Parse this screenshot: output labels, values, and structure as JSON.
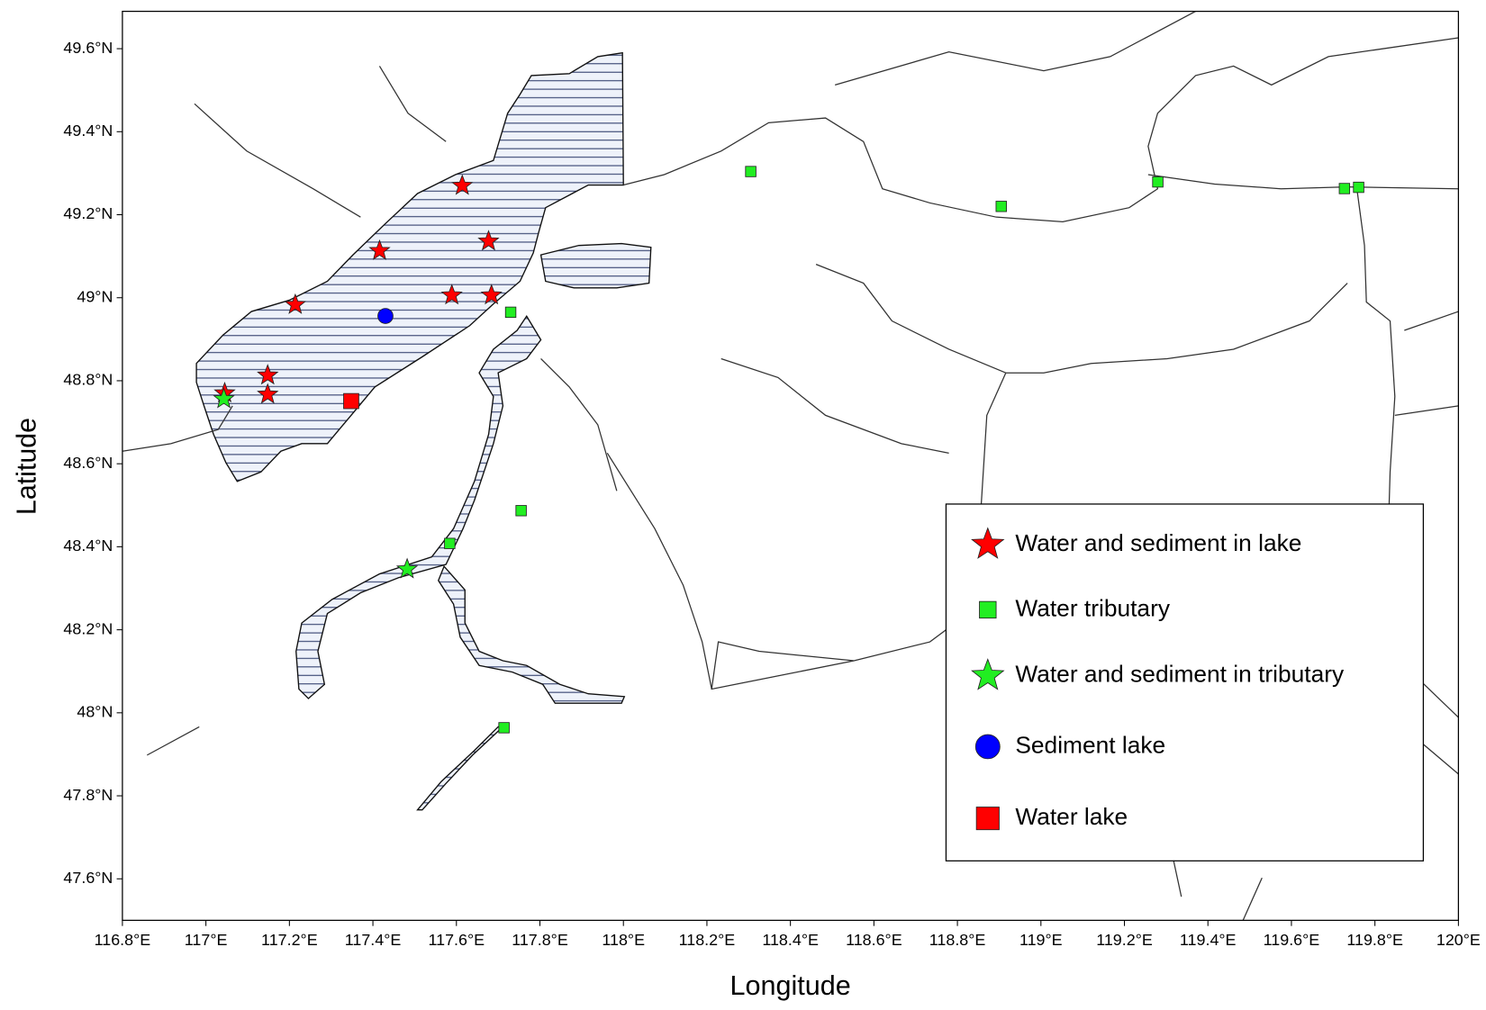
{
  "chart_data": {
    "type": "scatter",
    "x_label": "Longitude",
    "y_label": "Latitude",
    "xlim": [
      116.8,
      120
    ],
    "ylim": [
      47.5,
      49.69
    ],
    "xticks": [
      {
        "value": 116.8,
        "label": "116.8°E"
      },
      {
        "value": 117,
        "label": "117°E"
      },
      {
        "value": 117.2,
        "label": "117.2°E"
      },
      {
        "value": 117.4,
        "label": "117.4°E"
      },
      {
        "value": 117.6,
        "label": "117.6°E"
      },
      {
        "value": 117.8,
        "label": "117.8°E"
      },
      {
        "value": 118,
        "label": "118°E"
      },
      {
        "value": 118.2,
        "label": "118.2°E"
      },
      {
        "value": 118.4,
        "label": "118.4°E"
      },
      {
        "value": 118.6,
        "label": "118.6°E"
      },
      {
        "value": 118.8,
        "label": "118.8°E"
      },
      {
        "value": 119,
        "label": "119°E"
      },
      {
        "value": 119.2,
        "label": "119.2°E"
      },
      {
        "value": 119.4,
        "label": "119.4°E"
      },
      {
        "value": 119.6,
        "label": "119.6°E"
      },
      {
        "value": 119.8,
        "label": "119.8°E"
      },
      {
        "value": 120,
        "label": "120°E"
      }
    ],
    "yticks": [
      {
        "value": 47.6,
        "label": "47.6°N"
      },
      {
        "value": 47.8,
        "label": "47.8°N"
      },
      {
        "value": 48,
        "label": "48°N"
      },
      {
        "value": 48.2,
        "label": "48.2°N"
      },
      {
        "value": 48.4,
        "label": "48.4°N"
      },
      {
        "value": 48.6,
        "label": "48.6°N"
      },
      {
        "value": 48.8,
        "label": "48.8°N"
      },
      {
        "value": 49,
        "label": "49°N"
      },
      {
        "value": 49.2,
        "label": "49.2°N"
      },
      {
        "value": 49.4,
        "label": "49.4°N"
      },
      {
        "value": 49.6,
        "label": "49.6°N"
      }
    ],
    "series": [
      {
        "name": "Water and sediment in lake",
        "color": "#ff0000",
        "marker": "star",
        "x": [
          117.614,
          117.416,
          117.677,
          117.214,
          117.589,
          117.684,
          117.148,
          117.148,
          117.045
        ],
        "y": [
          49.27,
          49.113,
          49.136,
          48.983,
          49.006,
          49.006,
          48.813,
          48.767,
          48.77
        ]
      },
      {
        "name": "Water tributary",
        "color": "#22ee22",
        "marker": "square",
        "x": [
          118.305,
          119.28,
          118.905,
          119.727,
          119.761,
          117.73,
          117.755,
          117.584,
          117.714
        ],
        "y": [
          49.304,
          49.279,
          49.22,
          49.263,
          49.266,
          48.965,
          48.487,
          48.408,
          47.964
        ]
      },
      {
        "name": "Water and sediment in tributary",
        "color": "#22ee22",
        "marker": "star",
        "x": [
          117.043,
          117.482
        ],
        "y": [
          48.756,
          48.346
        ]
      },
      {
        "name": "Sediment lake",
        "color": "#0000ff",
        "marker": "circle",
        "x": [
          117.43
        ],
        "y": [
          48.956
        ]
      },
      {
        "name": "Water lake",
        "color": "#ff0000",
        "marker": "bigsquare",
        "x": [
          117.348
        ],
        "y": [
          48.751
        ]
      }
    ]
  }
}
